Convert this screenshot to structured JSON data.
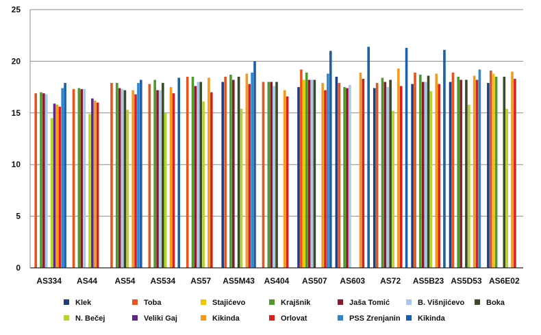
{
  "chart_data": {
    "type": "bar",
    "ylim": [
      0,
      25
    ],
    "yticks": [
      0,
      5,
      10,
      15,
      20,
      25
    ],
    "grid": true,
    "legend_position": "bottom",
    "categories": [
      "AS334",
      "AS44",
      "AS54",
      "AS534",
      "AS57",
      "AS5M43",
      "AS404",
      "AS507",
      "AS603",
      "AS72",
      "AS5B23",
      "AS5D53",
      "AS6E02"
    ],
    "series": [
      {
        "name": "Klek",
        "color": "#1f3f7f",
        "values": [
          null,
          null,
          null,
          null,
          null,
          18.0,
          null,
          17.5,
          18.5,
          17.4,
          17.8,
          18.0,
          17.9
        ]
      },
      {
        "name": "Toba",
        "color": "#e8541e",
        "values": [
          16.9,
          17.3,
          17.9,
          17.8,
          18.5,
          18.5,
          18.0,
          19.2,
          17.9,
          17.9,
          18.9,
          18.9,
          19.1
        ]
      },
      {
        "name": "Stajićevo",
        "color": "#f2c400",
        "values": [
          null,
          null,
          null,
          null,
          null,
          null,
          null,
          18.2,
          null,
          null,
          null,
          null,
          18.8
        ]
      },
      {
        "name": "Krajšnik",
        "color": "#4e9a2c",
        "values": [
          17.0,
          17.4,
          17.9,
          18.2,
          18.5,
          18.7,
          18.0,
          18.9,
          17.5,
          18.4,
          18.7,
          18.5,
          18.5
        ]
      },
      {
        "name": "Jaša Tomić",
        "color": "#8b1a2b",
        "values": [
          16.9,
          17.3,
          17.4,
          17.2,
          17.6,
          18.2,
          18.0,
          18.2,
          17.4,
          18.0,
          18.0,
          18.2,
          null
        ]
      },
      {
        "name": "B. Višnjićevo",
        "color": "#a9c7e8",
        "values": [
          16.8,
          17.3,
          17.3,
          17.2,
          18.0,
          null,
          17.6,
          18.2,
          17.7,
          17.5,
          18.0,
          null,
          null
        ]
      },
      {
        "name": "Boka",
        "color": "#3a4a26",
        "values": [
          null,
          null,
          17.2,
          17.9,
          18.0,
          18.5,
          18.0,
          18.2,
          null,
          18.2,
          18.6,
          18.2,
          18.5
        ]
      },
      {
        "name": "N. Bečej",
        "color": "#b8d22e",
        "values": [
          14.5,
          14.9,
          15.3,
          15.0,
          16.1,
          15.4,
          null,
          null,
          null,
          15.2,
          17.1,
          15.8,
          15.4
        ]
      },
      {
        "name": "Veliki Gaj",
        "color": "#5b2a86",
        "values": [
          15.9,
          16.4,
          null,
          null,
          null,
          null,
          null,
          null,
          null,
          null,
          null,
          null,
          null
        ]
      },
      {
        "name": "Kikinda",
        "color": "#f59a1d",
        "values": [
          15.8,
          16.2,
          17.2,
          17.5,
          18.4,
          18.8,
          17.2,
          17.9,
          18.9,
          19.3,
          18.8,
          18.6,
          19.0
        ]
      },
      {
        "name": "Orlovat",
        "color": "#d9201e",
        "values": [
          15.6,
          16.0,
          16.8,
          16.9,
          17.0,
          17.8,
          16.6,
          17.2,
          18.3,
          17.6,
          17.8,
          18.2,
          18.3
        ]
      },
      {
        "name": "PSS Zrenjanin",
        "color": "#2e86cf",
        "values": [
          17.4,
          null,
          17.9,
          null,
          null,
          18.9,
          null,
          18.8,
          null,
          null,
          null,
          19.2,
          null
        ]
      },
      {
        "name": "Kikinda",
        "color": "#1a5fa8",
        "values": [
          17.9,
          null,
          18.2,
          18.4,
          null,
          20.0,
          null,
          21.0,
          21.4,
          21.3,
          21.1,
          null,
          null
        ]
      }
    ]
  }
}
